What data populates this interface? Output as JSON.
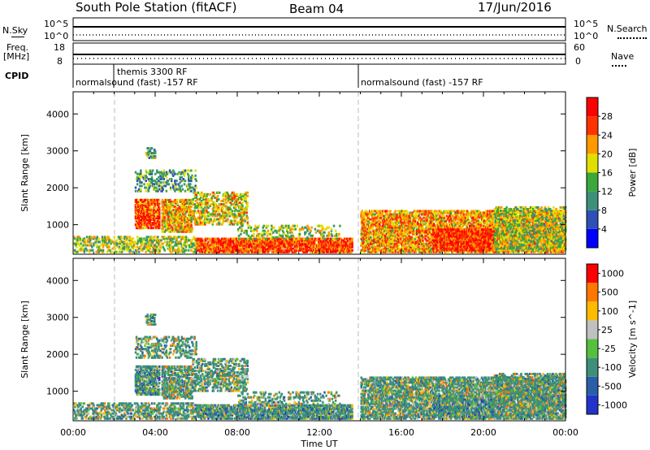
{
  "header": {
    "station": "South Pole Station (fitACF)",
    "beam": "Beam 04",
    "date": "17/Jun/2016"
  },
  "panels": {
    "nsky_label": "N.Sky",
    "nsky_ticks": [
      "10^5",
      "10^0"
    ],
    "nsearch_label": "N.Search",
    "nsearch_ticks": [
      "10^5",
      "10^0"
    ],
    "freq_label_1": "Freq.",
    "freq_label_2": "[MHz]",
    "freq_ticks": [
      "18",
      "8"
    ],
    "nave_label": "Nave",
    "nave_ticks": [
      "60",
      "0"
    ],
    "cpid_label": "CPID",
    "cpid_segments": [
      "normalsound (fast) -157 RF",
      "themis 3300 RF",
      "normalsound (fast) -157 RF"
    ]
  },
  "chart_data": [
    {
      "type": "heatmap",
      "name": "power",
      "ylabel": "Slant Range [km]",
      "yticks": [
        "1000",
        "2000",
        "3000",
        "4000"
      ],
      "ylim": [
        200,
        4600
      ],
      "xlim": [
        0,
        24
      ],
      "colorbar_label": "Power [dB]",
      "colorbar_ticks": [
        "4",
        "8",
        "12",
        "16",
        "20",
        "24",
        "28"
      ],
      "colorbar_colors": [
        "#0000ff",
        "#2e4fb5",
        "#3d8f7a",
        "#3aa83a",
        "#e0e000",
        "#ff9900",
        "#ff3300",
        "#ff0000"
      ]
    },
    {
      "type": "heatmap",
      "name": "velocity",
      "ylabel": "Slant Range [km]",
      "yticks": [
        "1000",
        "2000",
        "3000",
        "4000"
      ],
      "ylim": [
        200,
        4600
      ],
      "xlim": [
        0,
        24
      ],
      "colorbar_label": "Velocity [m s^-1]",
      "colorbar_ticks": [
        "1000",
        "500",
        "100",
        "25",
        "-25",
        "-100",
        "-500",
        "-1000"
      ],
      "colorbar_colors": [
        "#2233cc",
        "#2a5fa8",
        "#3d8f7a",
        "#55c040",
        "#c0c0c0",
        "#ffbb00",
        "#ff7700",
        "#ff0000"
      ]
    }
  ],
  "time_axis": {
    "label": "Time UT",
    "ticks": [
      "00:00",
      "04:00",
      "08:00",
      "12:00",
      "16:00",
      "20:00",
      "00:00"
    ]
  }
}
